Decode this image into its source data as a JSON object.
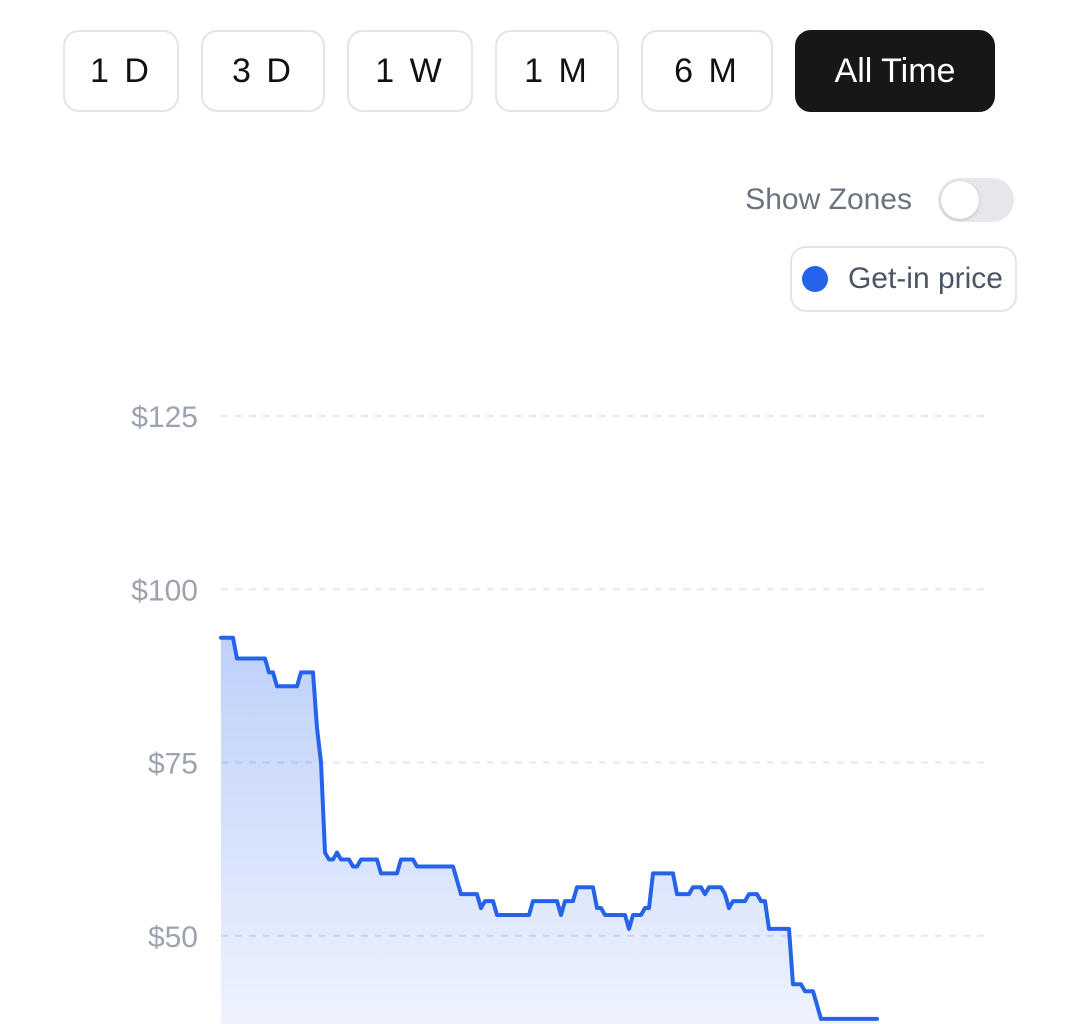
{
  "range_selector": {
    "options": [
      "1 D",
      "3 D",
      "1 W",
      "1 M",
      "6 M",
      "All Time"
    ],
    "selected": "All Time"
  },
  "zones_toggle": {
    "label": "Show Zones",
    "enabled": false
  },
  "legend": {
    "label": "Get-in price",
    "color": "#2563eb"
  },
  "chart_data": {
    "type": "area",
    "ylim": [
      25,
      125
    ],
    "y_ticks": [
      50,
      75,
      100,
      125
    ],
    "y_tick_labels": [
      "$50",
      "$75",
      "$100",
      "$125"
    ],
    "grid": true,
    "line_color": "#2563eb",
    "series": [
      {
        "name": "Get-in price",
        "x": [
          0,
          1,
          2,
          3,
          4,
          5,
          6,
          7,
          8,
          9,
          10,
          11,
          12,
          13,
          14,
          15,
          16,
          17,
          18,
          19,
          20,
          21,
          22,
          23,
          24,
          25,
          26,
          27,
          28,
          29,
          30,
          31,
          32,
          33,
          34,
          35,
          36,
          37,
          38,
          39,
          40,
          41,
          42,
          43,
          44,
          45,
          46,
          47,
          48,
          49,
          50,
          51,
          52,
          53,
          54,
          55,
          56,
          57,
          58,
          59,
          60,
          61,
          62,
          63,
          64,
          65,
          66,
          67,
          68,
          69,
          70,
          71,
          72,
          73,
          74,
          75,
          76,
          77,
          78,
          79,
          80,
          81,
          82,
          83,
          84,
          85,
          86,
          87,
          88,
          89,
          90,
          91,
          92,
          93,
          94,
          95,
          96,
          97,
          98,
          99,
          100,
          101,
          102,
          103,
          104,
          105,
          106,
          107,
          108,
          109,
          110,
          111,
          112,
          113,
          114,
          115,
          116,
          117,
          118,
          119,
          120,
          121,
          122,
          123,
          124,
          125,
          126,
          127,
          128,
          129,
          130,
          131,
          132,
          133,
          134,
          135,
          136,
          137,
          138,
          139,
          140,
          141,
          142,
          143,
          144,
          145,
          146,
          147,
          148,
          149,
          150,
          151,
          152,
          153,
          154,
          155,
          156,
          157,
          158,
          159,
          160,
          161,
          162,
          163,
          164
        ],
        "values": [
          93,
          93,
          93,
          93,
          90,
          90,
          90,
          90,
          90,
          90,
          90,
          90,
          88,
          88,
          86,
          86,
          86,
          86,
          86,
          86,
          88,
          88,
          88,
          88,
          80,
          75,
          62,
          61,
          61,
          62,
          61,
          61,
          61,
          60,
          60,
          61,
          61,
          61,
          61,
          61,
          59,
          59,
          59,
          59,
          59,
          61,
          61,
          61,
          61,
          60,
          60,
          60,
          60,
          60,
          60,
          60,
          60,
          60,
          60,
          58,
          56,
          56,
          56,
          56,
          56,
          54,
          55,
          55,
          55,
          53,
          53,
          53,
          53,
          53,
          53,
          53,
          53,
          53,
          55,
          55,
          55,
          55,
          55,
          55,
          55,
          53,
          55,
          55,
          55,
          57,
          57,
          57,
          57,
          57,
          54,
          54,
          53,
          53,
          53,
          53,
          53,
          53,
          51,
          53,
          53,
          53,
          54,
          54,
          59,
          59,
          59,
          59,
          59,
          59,
          56,
          56,
          56,
          56,
          57,
          57,
          57,
          56,
          57,
          57,
          57,
          57,
          56,
          54,
          55,
          55,
          55,
          55,
          56,
          56,
          56,
          55,
          55,
          51,
          51,
          51,
          51,
          51,
          51,
          43,
          43,
          43,
          42,
          42,
          42,
          40,
          38,
          38,
          38,
          38,
          38,
          38,
          38,
          38,
          38,
          38,
          38,
          38,
          38,
          38,
          38
        ]
      }
    ]
  }
}
